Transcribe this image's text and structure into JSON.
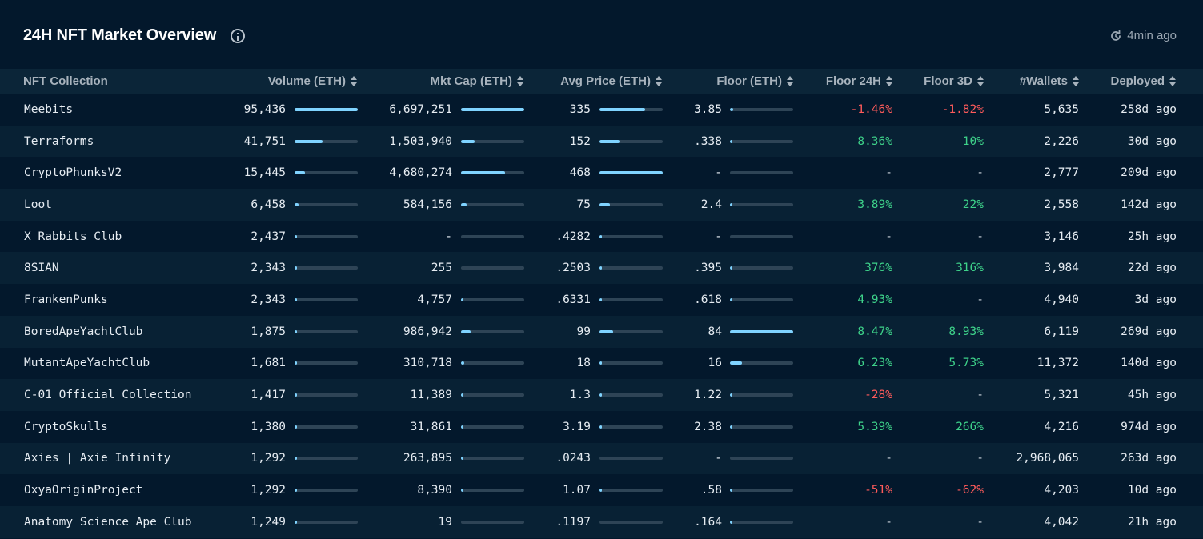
{
  "header": {
    "title": "24H NFT Market Overview",
    "updated": "4min ago",
    "icons": {
      "info": "info-icon",
      "refresh": "refresh-icon"
    }
  },
  "columns": [
    "NFT Collection",
    "Volume (ETH)",
    "Mkt Cap (ETH)",
    "Avg Price (ETH)",
    "Floor (ETH)",
    "Floor 24H",
    "Floor 3D",
    "#Wallets",
    "Deployed"
  ],
  "colors": {
    "accent_bar": "#7fd3ff",
    "positive": "#3ed28a",
    "negative": "#ff5b5b",
    "background": "#03182c"
  },
  "rows": [
    {
      "name": "Meebits",
      "volume": "95,436",
      "volume_pct": 1.0,
      "mktcap": "6,697,251",
      "mktcap_pct": 1.0,
      "avg": "335",
      "avg_pct": 0.72,
      "floor": "3.85",
      "floor_pct": 0.046,
      "f24": "-1.46%",
      "f3d": "-1.82%",
      "wallets": "5,635",
      "deployed": "258d ago"
    },
    {
      "name": "Terraforms",
      "volume": "41,751",
      "volume_pct": 0.44,
      "mktcap": "1,503,940",
      "mktcap_pct": 0.22,
      "avg": "152",
      "avg_pct": 0.32,
      "floor": ".338",
      "floor_pct": 0.004,
      "f24": "8.36%",
      "f3d": "10%",
      "wallets": "2,226",
      "deployed": "30d ago"
    },
    {
      "name": "CryptoPhunksV2",
      "volume": "15,445",
      "volume_pct": 0.16,
      "mktcap": "4,680,274",
      "mktcap_pct": 0.7,
      "avg": "468",
      "avg_pct": 1.0,
      "floor": "-",
      "floor_pct": 0,
      "f24": "-",
      "f3d": "-",
      "wallets": "2,777",
      "deployed": "209d ago"
    },
    {
      "name": "Loot",
      "volume": "6,458",
      "volume_pct": 0.068,
      "mktcap": "584,156",
      "mktcap_pct": 0.087,
      "avg": "75",
      "avg_pct": 0.16,
      "floor": "2.4",
      "floor_pct": 0.029,
      "f24": "3.89%",
      "f3d": "22%",
      "wallets": "2,558",
      "deployed": "142d ago"
    },
    {
      "name": "X Rabbits Club",
      "volume": "2,437",
      "volume_pct": 0.026,
      "mktcap": "-",
      "mktcap_pct": 0,
      "avg": ".4282",
      "avg_pct": 0.001,
      "floor": "-",
      "floor_pct": 0,
      "f24": "-",
      "f3d": "-",
      "wallets": "3,146",
      "deployed": "25h ago"
    },
    {
      "name": "8SIAN",
      "volume": "2,343",
      "volume_pct": 0.025,
      "mktcap": "255",
      "mktcap_pct": 0.0,
      "avg": ".2503",
      "avg_pct": 0.001,
      "floor": ".395",
      "floor_pct": 0.005,
      "f24": "376%",
      "f3d": "316%",
      "wallets": "3,984",
      "deployed": "22d ago"
    },
    {
      "name": "FrankenPunks",
      "volume": "2,343",
      "volume_pct": 0.025,
      "mktcap": "4,757",
      "mktcap_pct": 0.001,
      "avg": ".6331",
      "avg_pct": 0.001,
      "floor": ".618",
      "floor_pct": 0.007,
      "f24": "4.93%",
      "f3d": "-",
      "wallets": "4,940",
      "deployed": "3d ago"
    },
    {
      "name": "BoredApeYachtClub",
      "volume": "1,875",
      "volume_pct": 0.02,
      "mktcap": "986,942",
      "mktcap_pct": 0.147,
      "avg": "99",
      "avg_pct": 0.21,
      "floor": "84",
      "floor_pct": 1.0,
      "f24": "8.47%",
      "f3d": "8.93%",
      "wallets": "6,119",
      "deployed": "269d ago"
    },
    {
      "name": "MutantApeYachtClub",
      "volume": "1,681",
      "volume_pct": 0.018,
      "mktcap": "310,718",
      "mktcap_pct": 0.046,
      "avg": "18",
      "avg_pct": 0.04,
      "floor": "16",
      "floor_pct": 0.19,
      "f24": "6.23%",
      "f3d": "5.73%",
      "wallets": "11,372",
      "deployed": "140d ago"
    },
    {
      "name": "C-01 Official Collection",
      "volume": "1,417",
      "volume_pct": 0.015,
      "mktcap": "11,389",
      "mktcap_pct": 0.002,
      "avg": "1.3",
      "avg_pct": 0.003,
      "floor": "1.22",
      "floor_pct": 0.015,
      "f24": "-28%",
      "f3d": "-",
      "wallets": "5,321",
      "deployed": "45h ago"
    },
    {
      "name": "CryptoSkulls",
      "volume": "1,380",
      "volume_pct": 0.014,
      "mktcap": "31,861",
      "mktcap_pct": 0.005,
      "avg": "3.19",
      "avg_pct": 0.007,
      "floor": "2.38",
      "floor_pct": 0.028,
      "f24": "5.39%",
      "f3d": "266%",
      "wallets": "4,216",
      "deployed": "974d ago"
    },
    {
      "name": "Axies | Axie Infinity",
      "volume": "1,292",
      "volume_pct": 0.014,
      "mktcap": "263,895",
      "mktcap_pct": 0.04,
      "avg": ".0243",
      "avg_pct": 0.0,
      "floor": "-",
      "floor_pct": 0,
      "f24": "-",
      "f3d": "-",
      "wallets": "2,968,065",
      "deployed": "263d ago"
    },
    {
      "name": "OxyaOriginProject",
      "volume": "1,292",
      "volume_pct": 0.014,
      "mktcap": "8,390",
      "mktcap_pct": 0.001,
      "avg": "1.07",
      "avg_pct": 0.002,
      "floor": ".58",
      "floor_pct": 0.007,
      "f24": "-51%",
      "f3d": "-62%",
      "wallets": "4,203",
      "deployed": "10d ago"
    },
    {
      "name": "Anatomy Science Ape Club",
      "volume": "1,249",
      "volume_pct": 0.013,
      "mktcap": "19",
      "mktcap_pct": 0.0,
      "avg": ".1197",
      "avg_pct": 0.0,
      "floor": ".164",
      "floor_pct": 0.002,
      "f24": "-",
      "f3d": "-",
      "wallets": "4,042",
      "deployed": "21h ago"
    }
  ]
}
